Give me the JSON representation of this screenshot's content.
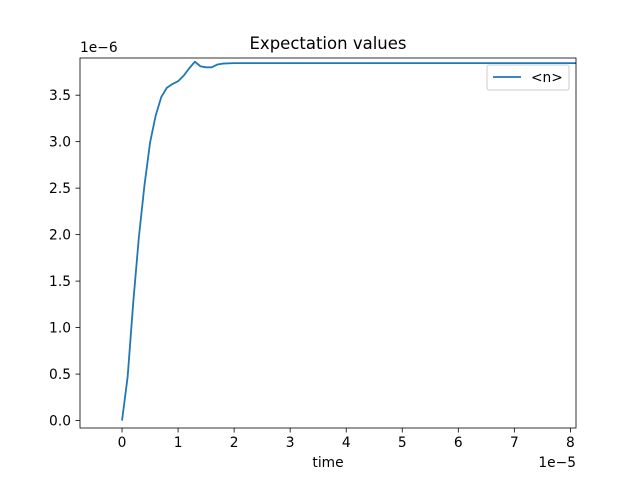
{
  "chart_data": {
    "type": "line",
    "title": "Expectation values",
    "xlabel": "time",
    "ylabel": "",
    "x_offset_text": "1e−5",
    "y_offset_text": "1e−6",
    "xlim": [
      -7.5e-06,
      8.1e-05
    ],
    "ylim": [
      -8e-08,
      3.9e-06
    ],
    "x_ticks": [
      {
        "value": 0,
        "label": "0"
      },
      {
        "value": 1e-05,
        "label": "1"
      },
      {
        "value": 2e-05,
        "label": "2"
      },
      {
        "value": 3e-05,
        "label": "3"
      },
      {
        "value": 4e-05,
        "label": "4"
      },
      {
        "value": 5e-05,
        "label": "5"
      },
      {
        "value": 6e-05,
        "label": "6"
      },
      {
        "value": 7e-05,
        "label": "7"
      },
      {
        "value": 8e-05,
        "label": "8"
      }
    ],
    "y_ticks": [
      {
        "value": 0,
        "label": "0.0"
      },
      {
        "value": 5e-07,
        "label": "0.5"
      },
      {
        "value": 1e-06,
        "label": "1.0"
      },
      {
        "value": 1.5e-06,
        "label": "1.5"
      },
      {
        "value": 2e-06,
        "label": "2.0"
      },
      {
        "value": 2.5e-06,
        "label": "2.5"
      },
      {
        "value": 3e-06,
        "label": "3.0"
      },
      {
        "value": 3.5e-06,
        "label": "3.5"
      }
    ],
    "grid": false,
    "legend": {
      "placement": "top-right"
    },
    "series": [
      {
        "name": "<n>",
        "color": "#1f77b4",
        "x": [
          0,
          1e-06,
          2e-06,
          3e-06,
          4e-06,
          5e-06,
          6e-06,
          7e-06,
          8e-06,
          9e-06,
          1e-05,
          1.1e-05,
          1.2e-05,
          1.3e-05,
          1.4e-05,
          1.5e-05,
          1.6e-05,
          1.7e-05,
          1.8e-05,
          2e-05,
          2.5e-05,
          3e-05,
          4e-05,
          5e-05,
          6e-05,
          7e-05,
          8.1e-05
        ],
        "y": [
          0,
          4.7e-07,
          1.27e-06,
          1.97e-06,
          2.53e-06,
          2.99e-06,
          3.28e-06,
          3.48e-06,
          3.58e-06,
          3.62e-06,
          3.65e-06,
          3.71e-06,
          3.79e-06,
          3.86e-06,
          3.81e-06,
          3.8e-06,
          3.8e-06,
          3.83e-06,
          3.84e-06,
          3.845e-06,
          3.845e-06,
          3.845e-06,
          3.845e-06,
          3.845e-06,
          3.845e-06,
          3.845e-06,
          3.845e-06
        ]
      }
    ]
  }
}
